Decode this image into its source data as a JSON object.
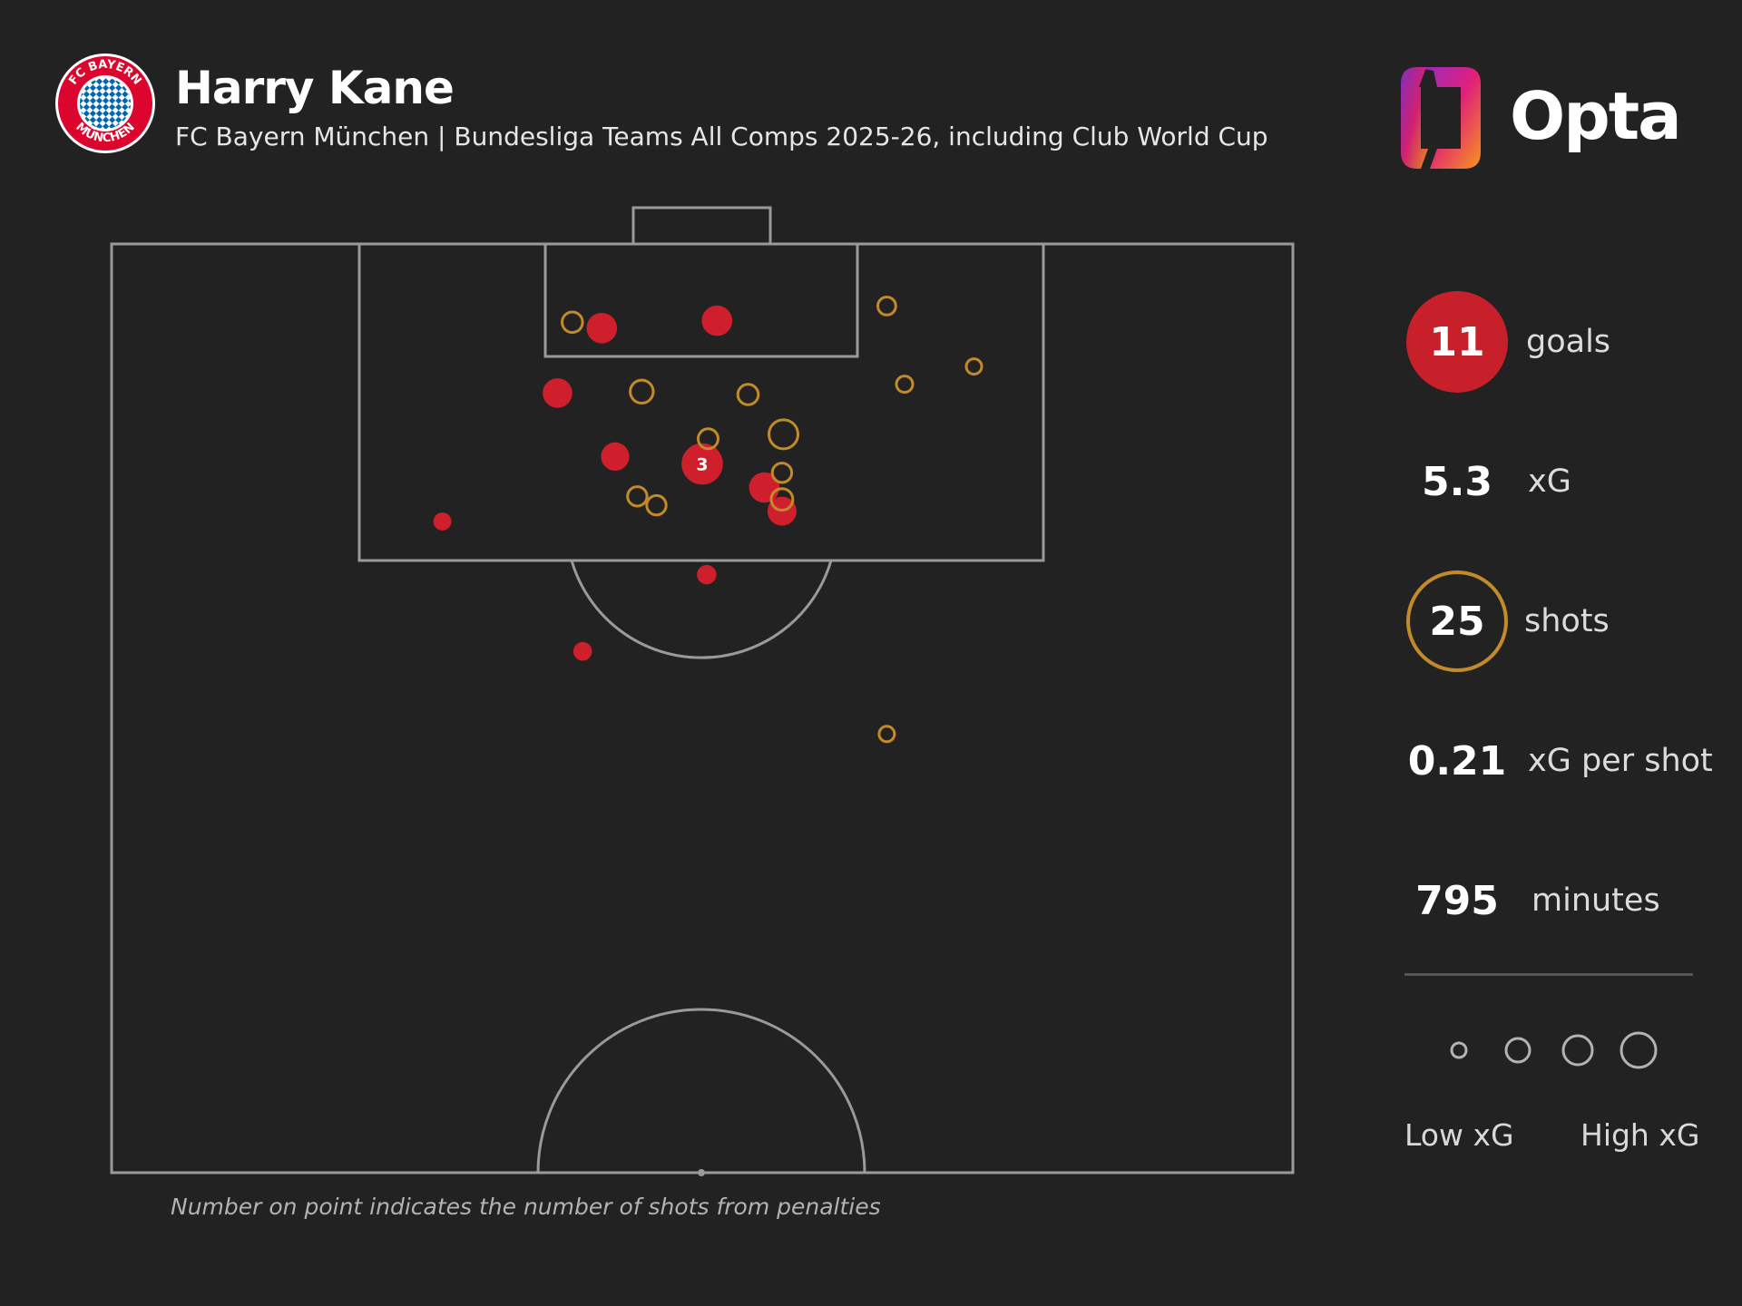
{
  "header": {
    "title": "Harry Kane",
    "subtitle": "FC Bayern München | Bundesliga Teams All Comps 2025-26, including Club World Cup",
    "crest_text": "FC BAYERN MÜNCHEN",
    "brand": "Opta"
  },
  "stats": [
    {
      "value": "11",
      "label": "goals"
    },
    {
      "value": "5.3",
      "label": "xG"
    },
    {
      "value": "25",
      "label": "shots"
    },
    {
      "value": "0.21",
      "label": "xG per shot"
    },
    {
      "value": "795",
      "label": "minutes"
    }
  ],
  "legend": {
    "low": "Low xG",
    "high": "High xG"
  },
  "note": "Number on point indicates the number of shots from penalties",
  "colors": {
    "background": "#222222",
    "goal": "#e0202e",
    "miss": "#c28a2b",
    "pitch_lines": "#9a9a9a",
    "crest_red": "#dc052d",
    "crest_blue": "#0066b2"
  },
  "chart_data": {
    "type": "scatter",
    "description": "Shot map, attacking half, goal at top. x = yards across pitch width (0 = left touchline, 80 = right touchline); y = yards from goal line.",
    "x_range": [
      0,
      80
    ],
    "y_range": [
      0,
      63
    ],
    "shots": [
      {
        "x": 40.0,
        "y": 14.9,
        "xg": 0.79,
        "goal": true,
        "penalties": 3
      },
      {
        "x": 33.2,
        "y": 5.7,
        "xg": 0.35,
        "goal": true
      },
      {
        "x": 41.0,
        "y": 5.2,
        "xg": 0.35,
        "goal": true
      },
      {
        "x": 30.2,
        "y": 10.1,
        "xg": 0.32,
        "goal": true
      },
      {
        "x": 34.1,
        "y": 14.4,
        "xg": 0.28,
        "goal": true
      },
      {
        "x": 44.2,
        "y": 16.5,
        "xg": 0.35,
        "goal": true
      },
      {
        "x": 45.4,
        "y": 18.1,
        "xg": 0.3,
        "goal": true
      },
      {
        "x": 22.4,
        "y": 18.8,
        "xg": 0.06,
        "goal": true
      },
      {
        "x": 40.3,
        "y": 22.4,
        "xg": 0.08,
        "goal": true
      },
      {
        "x": 31.9,
        "y": 27.6,
        "xg": 0.07,
        "goal": true
      },
      {
        "x": 31.2,
        "y": 5.3,
        "xg": 0.1,
        "goal": false
      },
      {
        "x": 52.5,
        "y": 4.2,
        "xg": 0.06,
        "goal": false
      },
      {
        "x": 35.9,
        "y": 10.0,
        "xg": 0.15,
        "goal": false
      },
      {
        "x": 43.1,
        "y": 10.2,
        "xg": 0.1,
        "goal": false
      },
      {
        "x": 53.7,
        "y": 9.5,
        "xg": 0.04,
        "goal": false
      },
      {
        "x": 58.4,
        "y": 8.3,
        "xg": 0.03,
        "goal": false
      },
      {
        "x": 40.4,
        "y": 13.2,
        "xg": 0.09,
        "goal": false
      },
      {
        "x": 45.5,
        "y": 12.9,
        "xg": 0.3,
        "goal": false
      },
      {
        "x": 45.4,
        "y": 15.5,
        "xg": 0.08,
        "goal": false
      },
      {
        "x": 45.4,
        "y": 17.3,
        "xg": 0.12,
        "goal": false
      },
      {
        "x": 35.6,
        "y": 17.1,
        "xg": 0.08,
        "goal": false
      },
      {
        "x": 36.9,
        "y": 17.7,
        "xg": 0.08,
        "goal": false
      },
      {
        "x": 52.5,
        "y": 33.2,
        "xg": 0.03,
        "goal": false
      }
    ]
  }
}
